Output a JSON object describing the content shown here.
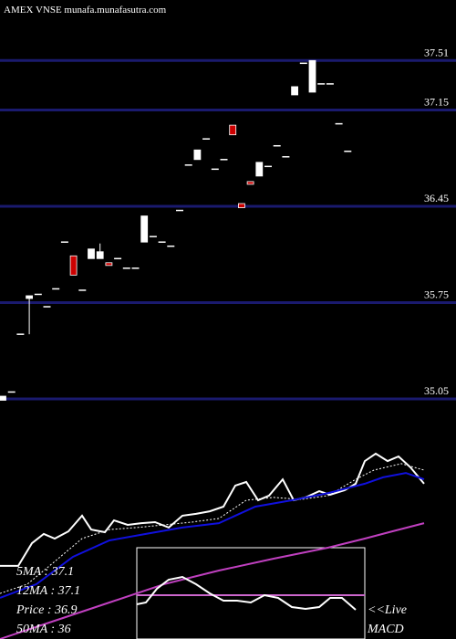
{
  "chart_data": [
    {
      "type": "candlestick",
      "title": "AMEX VNSE munafa.munafasutra.com",
      "open": [
        35.04,
        35.1,
        35.52,
        35.78,
        35.81,
        35.72,
        35.85,
        36.19,
        36.09,
        35.84,
        36.07,
        36.07,
        36.04,
        36.07,
        36.0,
        36.0,
        36.19,
        36.23,
        36.19,
        36.16,
        36.42,
        36.75,
        36.79,
        36.94,
        36.72,
        36.79,
        37.04,
        36.47,
        36.63,
        36.67,
        36.74,
        36.89,
        36.81,
        37.26,
        37.49,
        37.28,
        37.34,
        37.34,
        37.05,
        36.85
      ],
      "close": [
        35.07,
        35.1,
        35.52,
        35.8,
        35.81,
        35.72,
        35.85,
        36.19,
        35.95,
        35.84,
        36.14,
        36.12,
        36.02,
        36.07,
        36.0,
        36.0,
        36.38,
        36.23,
        36.19,
        36.16,
        36.42,
        36.75,
        36.86,
        36.94,
        36.72,
        36.79,
        36.97,
        36.44,
        36.61,
        36.77,
        36.74,
        36.89,
        36.81,
        37.32,
        37.49,
        37.51,
        37.34,
        37.34,
        37.05,
        36.85
      ],
      "high": [
        35.07,
        35.1,
        35.52,
        35.8,
        35.81,
        35.72,
        35.85,
        36.19,
        36.09,
        35.84,
        36.14,
        36.18,
        36.04,
        36.07,
        36.0,
        36.0,
        36.38,
        36.23,
        36.19,
        36.16,
        36.42,
        36.75,
        36.86,
        36.94,
        36.72,
        36.79,
        37.04,
        36.47,
        36.63,
        36.77,
        36.74,
        36.89,
        36.81,
        37.32,
        37.49,
        37.51,
        37.34,
        37.34,
        37.05,
        36.85
      ],
      "low": [
        35.04,
        35.1,
        35.52,
        35.52,
        35.81,
        35.72,
        35.85,
        36.19,
        35.95,
        35.84,
        36.07,
        36.07,
        36.02,
        36.07,
        36.0,
        36.0,
        36.19,
        36.23,
        36.19,
        36.16,
        36.42,
        36.75,
        36.79,
        36.94,
        36.72,
        36.79,
        36.97,
        36.44,
        36.61,
        36.67,
        36.74,
        36.89,
        36.81,
        37.26,
        37.49,
        37.28,
        37.34,
        37.34,
        37.05,
        36.85
      ],
      "up_color": "#ffffff",
      "down_color": "#cc0000",
      "grid_color": "#1a1a6e",
      "ylim": [
        35.03,
        37.95
      ],
      "yticks": [
        35.05,
        35.75,
        36.45,
        37.15,
        37.51
      ],
      "grid": true
    },
    {
      "type": "line",
      "ylim": [
        0,
        100
      ],
      "xlim": [
        0,
        500
      ],
      "series": [
        {
          "color": "#ffffff",
          "dash": false,
          "x": [
            0,
            20,
            35,
            48,
            60,
            75,
            90,
            100,
            115,
            125,
            140,
            155,
            170,
            185,
            200,
            215,
            230,
            245,
            258,
            270,
            283,
            295,
            310,
            322,
            335,
            350,
            362,
            378,
            390,
            400,
            412,
            425,
            437,
            450,
            465
          ],
          "values": [
            36.4,
            36.4,
            47.7,
            52.3,
            50,
            53.6,
            61.4,
            54.5,
            53.2,
            59.1,
            56.8,
            57.7,
            58.2,
            55.5,
            61.4,
            62.3,
            63.6,
            65.9,
            76.4,
            78.2,
            69.1,
            71.4,
            79.5,
            69.1,
            70.5,
            73.6,
            71.8,
            74.1,
            77.3,
            88.6,
            92.3,
            88.6,
            90.9,
            85.5,
            77.3
          ]
        },
        {
          "color": "#ffffff",
          "dash": true,
          "x": [
            0,
            30,
            60,
            90,
            120,
            150,
            180,
            210,
            240,
            270,
            300,
            330,
            360,
            390,
            410,
            440,
            465
          ],
          "values": [
            22.7,
            27.3,
            38.6,
            50,
            54.5,
            55.5,
            56.8,
            58.2,
            60,
            69.1,
            70.5,
            69.5,
            71.4,
            79.5,
            84.1,
            87.3,
            84.1
          ]
        },
        {
          "color": "#1010dd",
          "dash": false,
          "x": [
            0,
            40,
            80,
            120,
            160,
            200,
            240,
            280,
            320,
            360,
            400,
            420,
            445,
            465
          ],
          "values": [
            20.5,
            27.3,
            40.9,
            49.1,
            52.3,
            55.5,
            57.7,
            65.9,
            69.1,
            72.7,
            77.3,
            80.5,
            82.7,
            79.5
          ]
        },
        {
          "color": "#c040c0",
          "dash": false,
          "x": [
            0,
            60,
            120,
            180,
            240,
            300,
            360,
            400,
            430,
            465
          ],
          "values": [
            0,
            9.1,
            18.2,
            27.3,
            34.1,
            40,
            45.5,
            50,
            53.6,
            57.7
          ]
        }
      ],
      "legend": [
        "5MA : 37.1",
        "12MA : 37.1",
        "Price : 36.9",
        "50MA : 36"
      ],
      "notes": [
        "<<Live",
        "MACD"
      ]
    },
    {
      "type": "line",
      "ylim": [
        0,
        100
      ],
      "xlim": [
        0,
        250
      ],
      "baseline": 48,
      "baseline_color": "#cc66cc",
      "series": [
        {
          "color": "#ffffff",
          "dash": false,
          "x": [
            0,
            10,
            22,
            35,
            50,
            65,
            80,
            95,
            110,
            125,
            140,
            155,
            170,
            185,
            200,
            212,
            225,
            240
          ],
          "values": [
            38,
            40,
            55,
            65,
            68,
            60,
            50,
            42,
            42,
            40,
            48,
            45,
            35,
            33,
            35,
            45,
            45,
            32
          ]
        }
      ]
    }
  ]
}
